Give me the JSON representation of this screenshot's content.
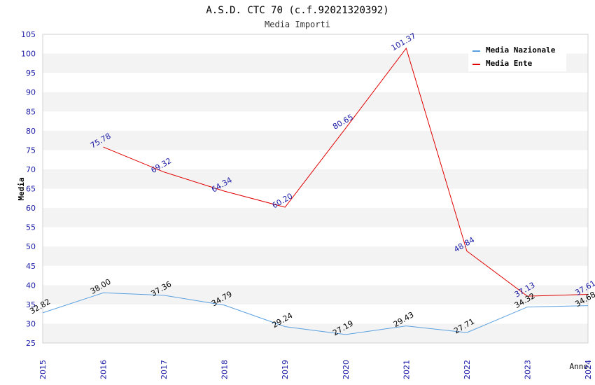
{
  "chart_data": {
    "type": "line",
    "title": "A.S.D. CTC 70 (c.f.92021320392)",
    "subtitle": "Media Importi",
    "xlabel": "Anno",
    "ylabel": "Media",
    "x": [
      2015,
      2016,
      2017,
      2018,
      2019,
      2020,
      2021,
      2022,
      2023,
      2024
    ],
    "ylim": [
      25,
      105
    ],
    "yticks": [
      25,
      30,
      35,
      40,
      45,
      50,
      55,
      60,
      65,
      70,
      75,
      80,
      85,
      90,
      95,
      100,
      105
    ],
    "grid": "horizontal alternating bands",
    "legend_position": "top-right",
    "series": [
      {
        "name": "Media Nazionale",
        "color": "#5aa0e0",
        "label_color": "#000000",
        "values": [
          32.82,
          38.0,
          37.36,
          34.79,
          29.24,
          27.19,
          29.43,
          27.71,
          34.32,
          34.68
        ],
        "labels": [
          "32.82",
          "38.00",
          "37.36",
          "34.79",
          "29.24",
          "27.19",
          "29.43",
          "27.71",
          "34.32",
          "34.68"
        ]
      },
      {
        "name": "Media Ente",
        "color": "#e00000",
        "label_color": "#1a1aa6",
        "values": [
          null,
          75.78,
          69.32,
          64.34,
          60.2,
          80.65,
          101.37,
          48.84,
          37.13,
          37.61
        ],
        "labels": [
          null,
          "75.78",
          "69.32",
          "64.34",
          "60.20",
          "80.65",
          "101.37",
          "48.84",
          "37.13",
          "37.61"
        ]
      }
    ]
  }
}
